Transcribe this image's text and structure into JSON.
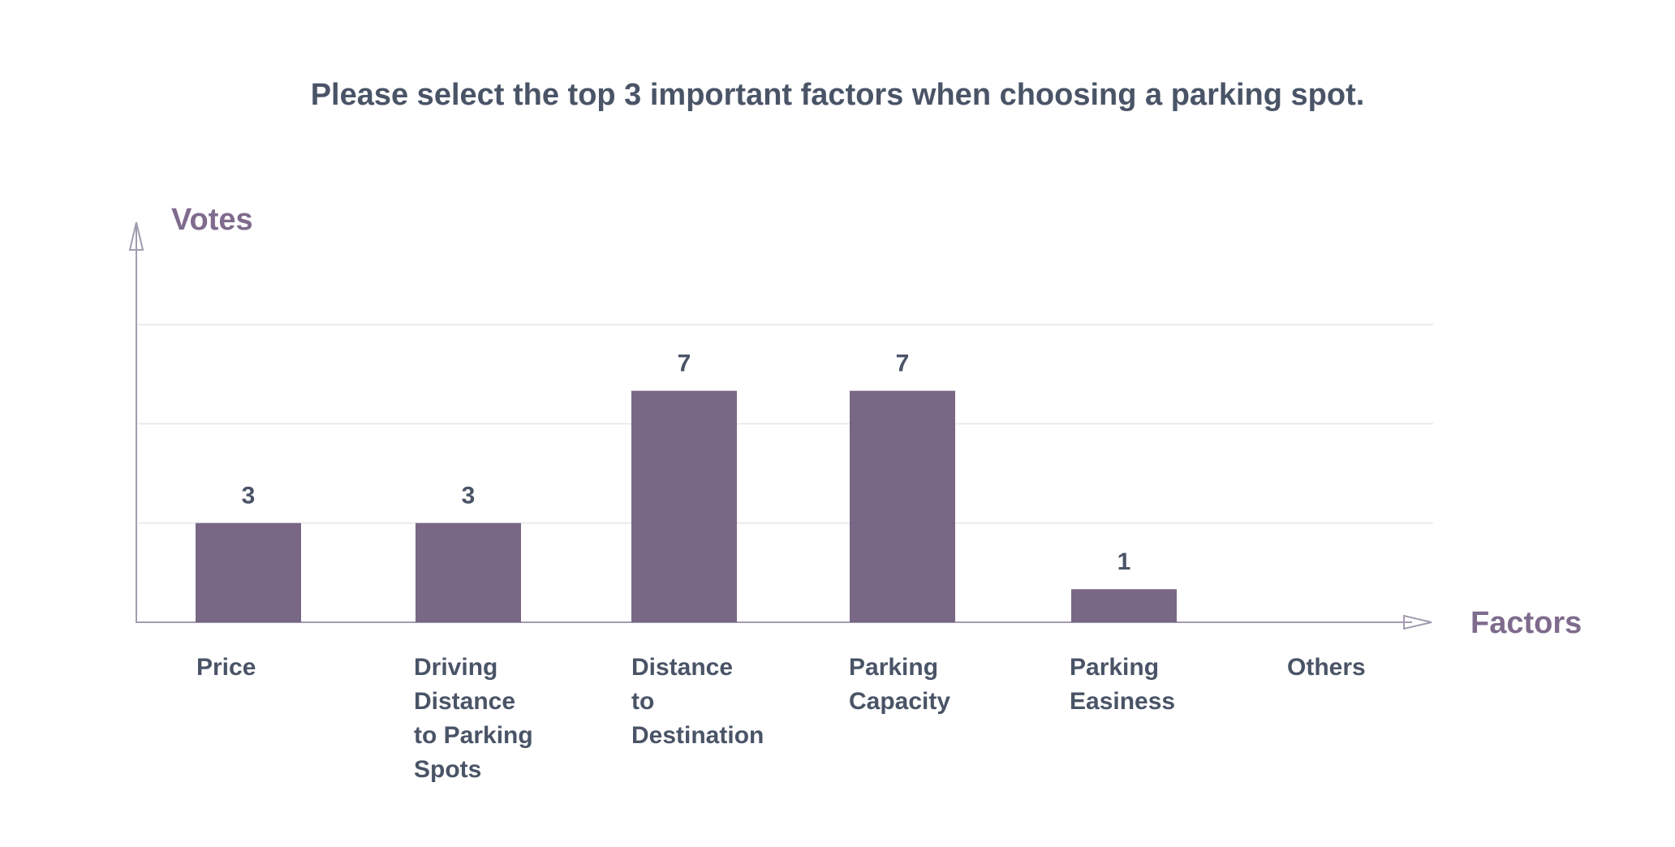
{
  "chart_data": {
    "type": "bar",
    "title": "Please select the top 3 important factors when choosing a parking spot.",
    "ylabel": "Votes",
    "xlabel": "Factors",
    "categories": [
      [
        "Price"
      ],
      [
        "Driving",
        "Distance",
        "to Parking",
        "Spots"
      ],
      [
        "Distance",
        "to",
        "Destination"
      ],
      [
        "Parking",
        "Capacity"
      ],
      [
        "Parking",
        "Easiness"
      ],
      [
        "Others"
      ]
    ],
    "values": [
      3,
      3,
      7,
      7,
      1,
      0
    ],
    "value_labels": [
      "3",
      "3",
      "7",
      "7",
      "1",
      ""
    ],
    "ylim": [
      0,
      9.2
    ],
    "gridlines": [
      3,
      6,
      9
    ],
    "grid": true,
    "bar_color": "#6e5a7c",
    "axis_color": "#a39cb0",
    "label_color": "#4a5467",
    "axis_title_color": "#7f6b8d"
  }
}
